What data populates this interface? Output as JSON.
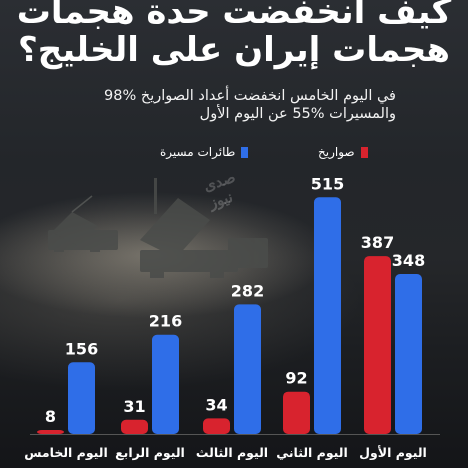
{
  "title_line1": "كيف انخفضت حدة هجمات",
  "title_line2": "هجمات إيران على الخليج؟",
  "subtitle_line1": "في اليوم الخامس انخفضت أعداد الصواريخ %98",
  "subtitle_line2": "والمسيرات %55 عن اليوم الأول",
  "watermark": "صدى نيوز",
  "colors": {
    "missiles": "#d8232e",
    "drones": "#2f6ee8"
  },
  "chart_data": {
    "type": "bar",
    "categories": [
      "اليوم الأول",
      "اليوم الثاني",
      "اليوم الثالث",
      "اليوم الرابع",
      "اليوم الخامس"
    ],
    "series": [
      {
        "name": "صواريخ",
        "values": [
          387,
          92,
          34,
          31,
          8
        ]
      },
      {
        "name": "طائرات مسيرة",
        "values": [
          348,
          515,
          282,
          216,
          156
        ]
      }
    ],
    "legend_position": "top",
    "ylim": [
      0,
      520
    ]
  }
}
